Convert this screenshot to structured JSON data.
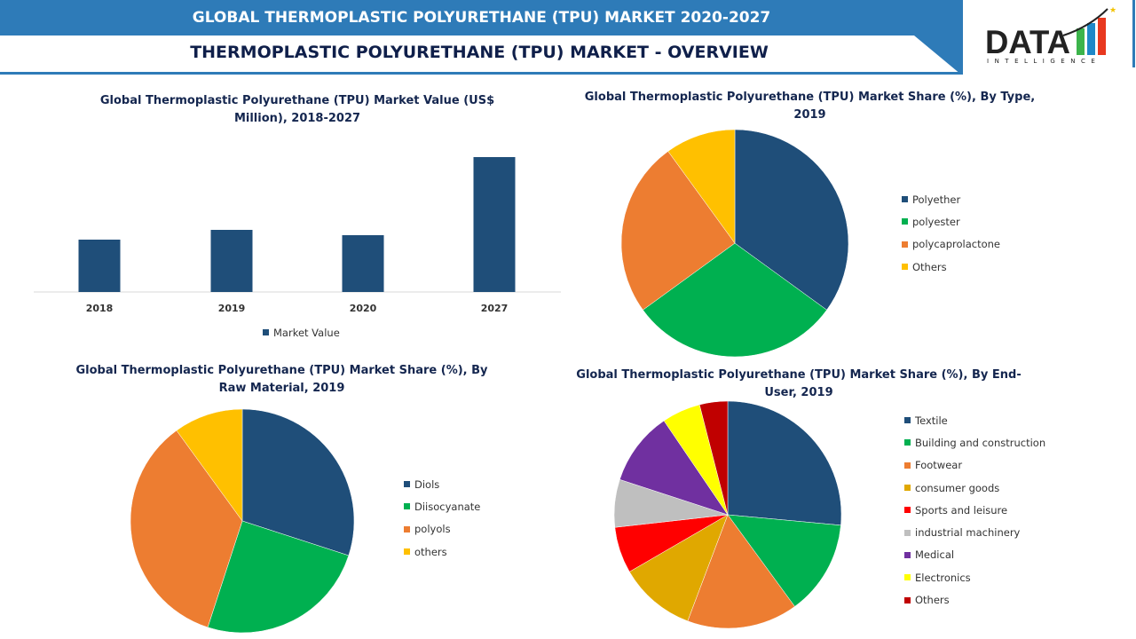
{
  "header": {
    "title": "GLOBAL THERMOPLASTIC POLYURETHANE (TPU) MARKET 2020-2027",
    "subtitle": "THERMOPLASTIC POLYURETHANE (TPU) MARKET - OVERVIEW",
    "accent": "#2e7bb8"
  },
  "logo": {
    "text": "DATA",
    "tagline": "INTELLIGENCE"
  },
  "chart_data": [
    {
      "type": "bar",
      "title": "Global Thermoplastic Polyurethane (TPU) Market Value (US$ Million), 2018-2027",
      "categories": [
        "2018",
        "2019",
        "2020",
        "2027"
      ],
      "series": [
        {
          "name": "Market Value",
          "values": [
            59,
            70,
            64,
            152
          ],
          "color": "#1f4e79"
        }
      ],
      "ylim": [
        0,
        160
      ],
      "grid": false,
      "legend": "bottom"
    },
    {
      "type": "pie",
      "title": "Global Thermoplastic Polyurethane (TPU) Market Share (%), By Type, 2019",
      "labels": [
        "Polyether",
        "polyester",
        "polycaprolactone",
        "Others"
      ],
      "values": [
        35,
        30,
        25,
        10
      ],
      "colors": [
        "#1f4e79",
        "#00b050",
        "#ed7d31",
        "#ffc000"
      ],
      "legend": "right"
    },
    {
      "type": "pie",
      "title": "Global Thermoplastic Polyurethane (TPU) Market Share (%), By Raw Material, 2019",
      "labels": [
        "Diols",
        "Diisocyanate",
        "polyols",
        "others"
      ],
      "values": [
        30,
        25,
        35,
        10
      ],
      "colors": [
        "#1f4e79",
        "#00b050",
        "#ed7d31",
        "#ffc000"
      ],
      "legend": "right"
    },
    {
      "type": "pie",
      "title": "Global Thermoplastic Polyurethane (TPU) Market Share (%), By End-User, 2019",
      "labels": [
        "Textile",
        "Building and construction",
        "Footwear",
        "consumer goods",
        "Sports and leisure",
        "industrial machinery",
        "Medical",
        "Electronics",
        "Others"
      ],
      "values": [
        26.5,
        13.5,
        15.8,
        10.9,
        6.6,
        6.8,
        10.5,
        5.5,
        4
      ],
      "colors": [
        "#1f4e79",
        "#00b050",
        "#ed7d31",
        "#e0a800",
        "#ff0000",
        "#bfbfbf",
        "#7030a0",
        "#ffff00",
        "#c00000"
      ],
      "legend": "right"
    }
  ]
}
